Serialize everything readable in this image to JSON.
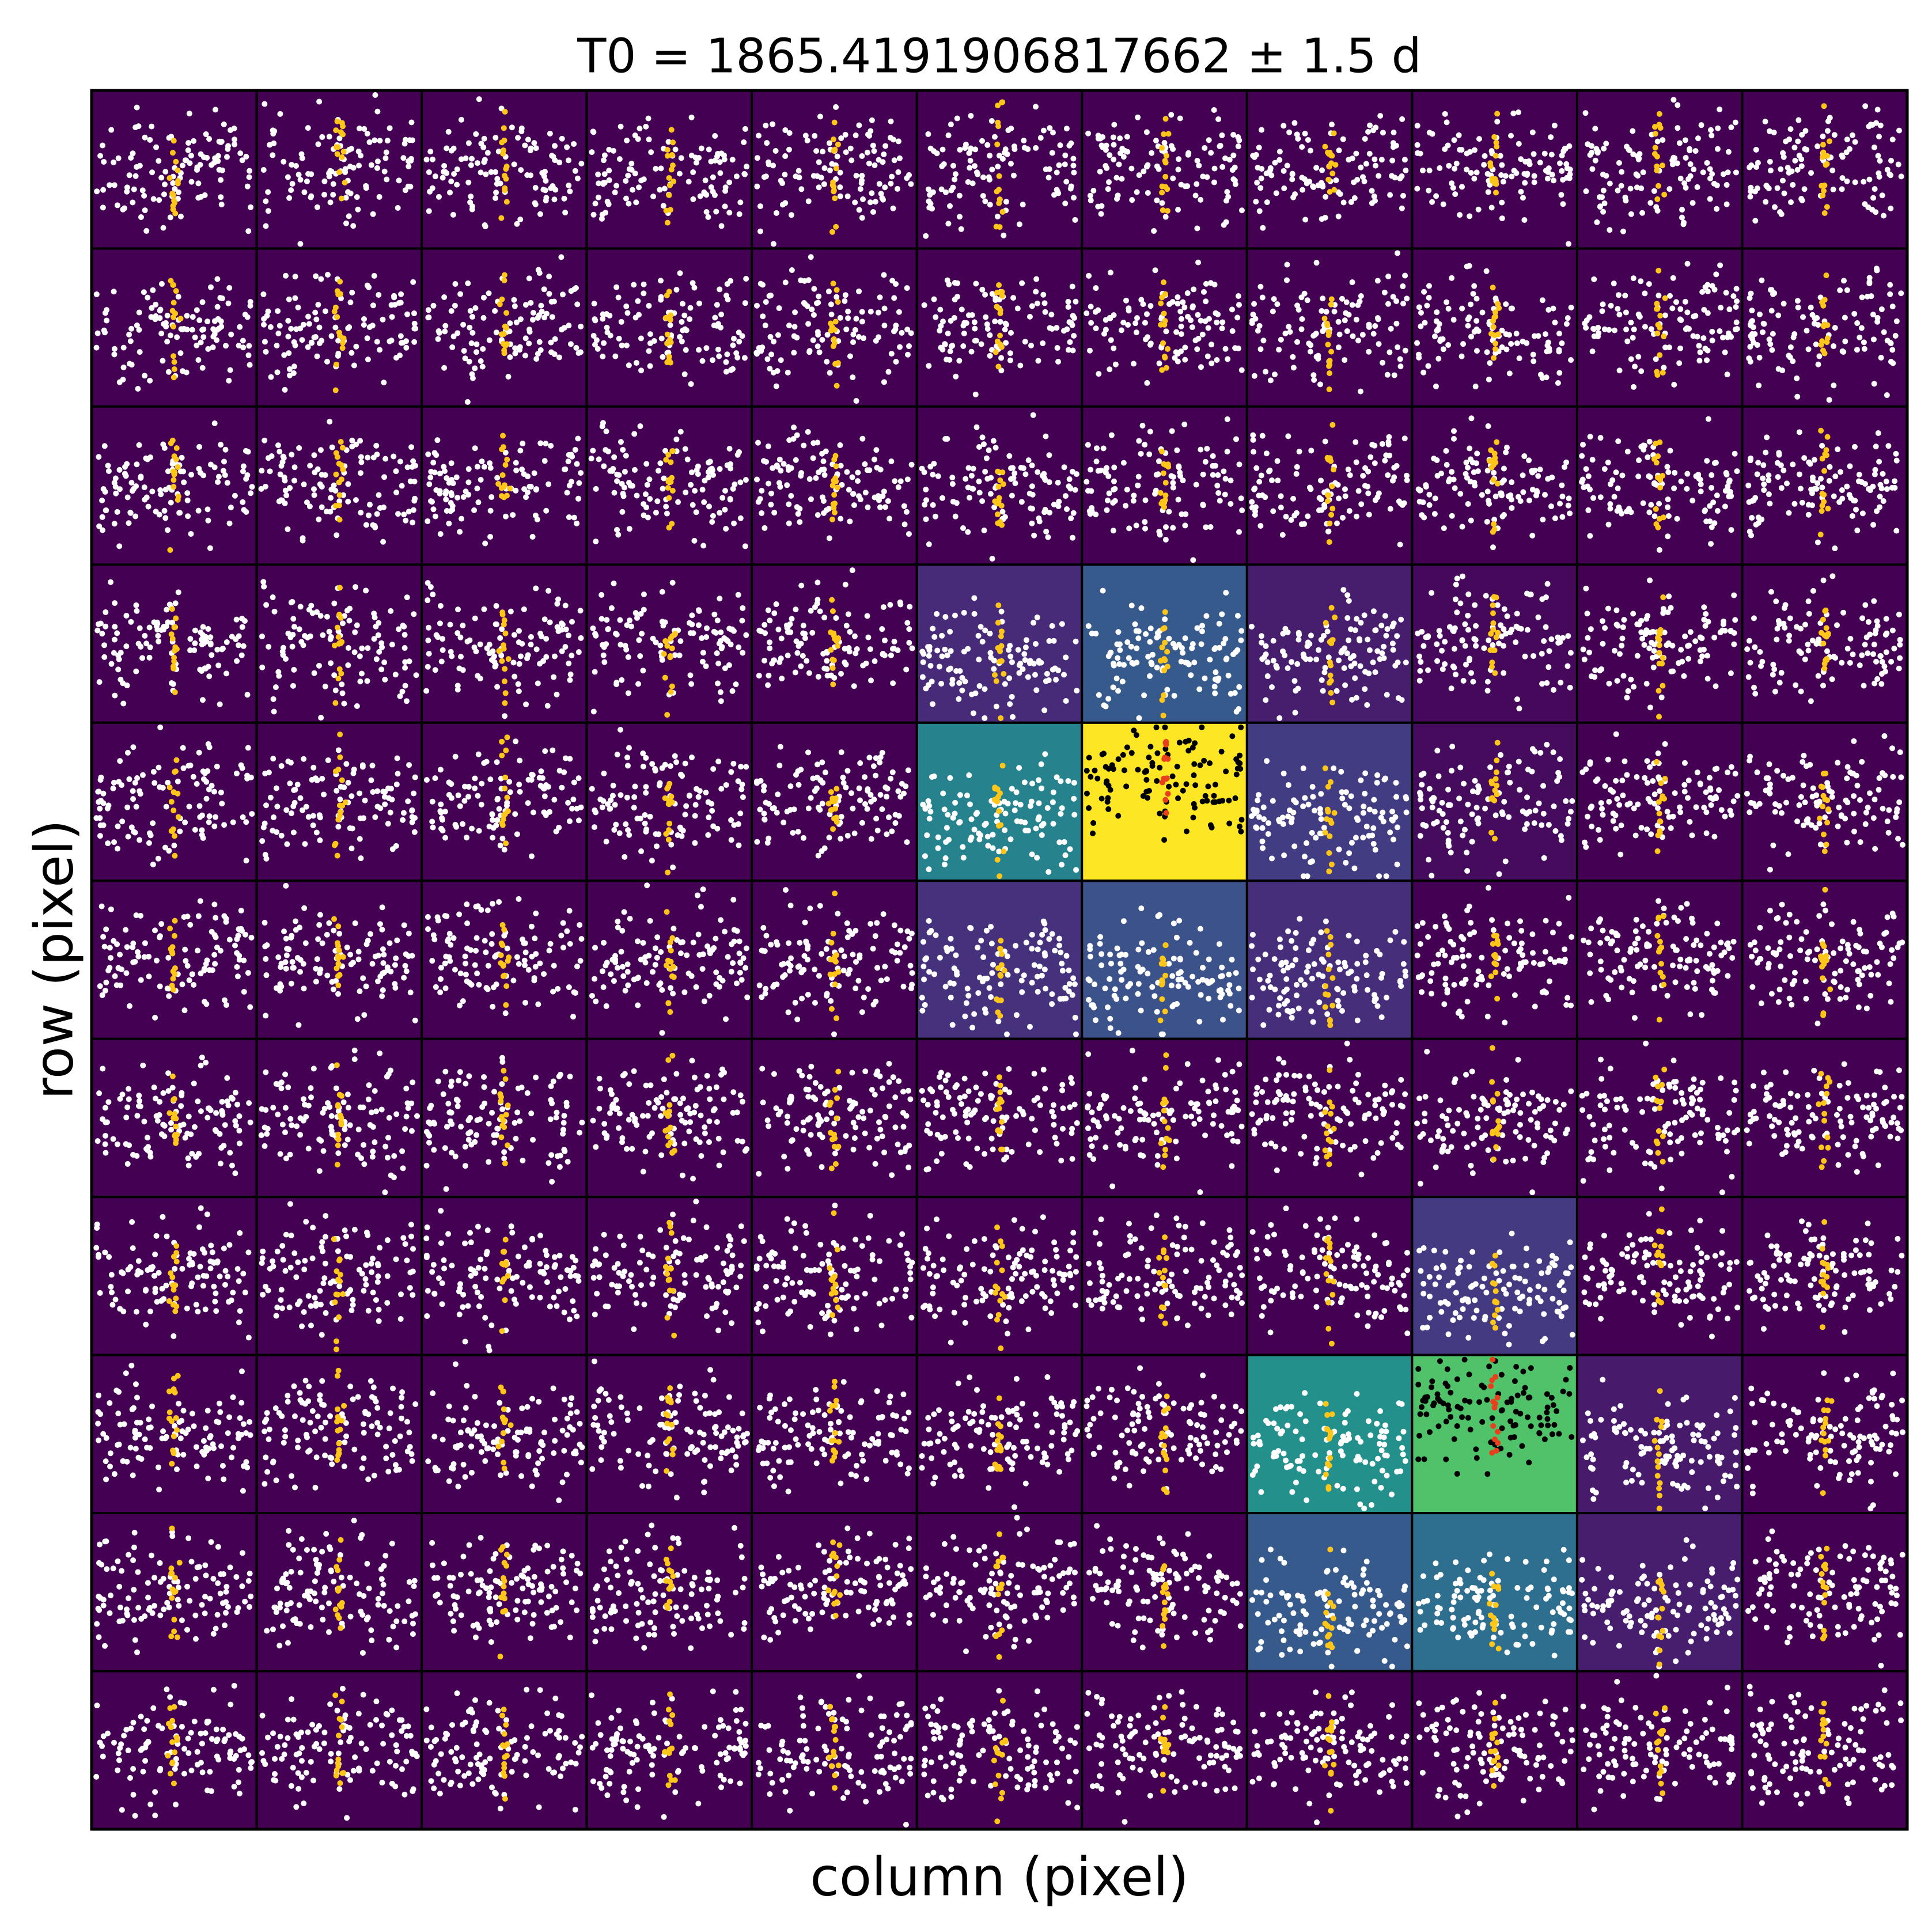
{
  "chart_data": {
    "type": "heatmap",
    "title": "T0 = 1865.4191906817662 ± 1.5 d",
    "xlabel": "column (pixel)",
    "ylabel": "row (pixel)",
    "colormap": "viridis",
    "z": [
      [
        0,
        0,
        0,
        0,
        0,
        0,
        0,
        0,
        0,
        0,
        0
      ],
      [
        0,
        0,
        0,
        0,
        0,
        0,
        0,
        0,
        0,
        0,
        0
      ],
      [
        0,
        0,
        0,
        0,
        0,
        0,
        0,
        0,
        0,
        0,
        0
      ],
      [
        0,
        0,
        0,
        0,
        0,
        0.12,
        0.28,
        0.08,
        0.02,
        0,
        0
      ],
      [
        0,
        0,
        0,
        0,
        0,
        0.45,
        1,
        0.18,
        0.03,
        0,
        0
      ],
      [
        0,
        0,
        0,
        0,
        0,
        0.14,
        0.25,
        0.13,
        0,
        0,
        0
      ],
      [
        0,
        0,
        0,
        0,
        0,
        0,
        0,
        0,
        0,
        0,
        0
      ],
      [
        0,
        0,
        0,
        0,
        0,
        0,
        0,
        0,
        0.17,
        0,
        0
      ],
      [
        0,
        0,
        0,
        0,
        0,
        0,
        0,
        0.5,
        0.72,
        0.07,
        0
      ],
      [
        0,
        0,
        0,
        0,
        0,
        0,
        0,
        0.28,
        0.36,
        0.08,
        0
      ],
      [
        0,
        0,
        0,
        0,
        0,
        0,
        0,
        0,
        0,
        0,
        0
      ]
    ]
  }
}
